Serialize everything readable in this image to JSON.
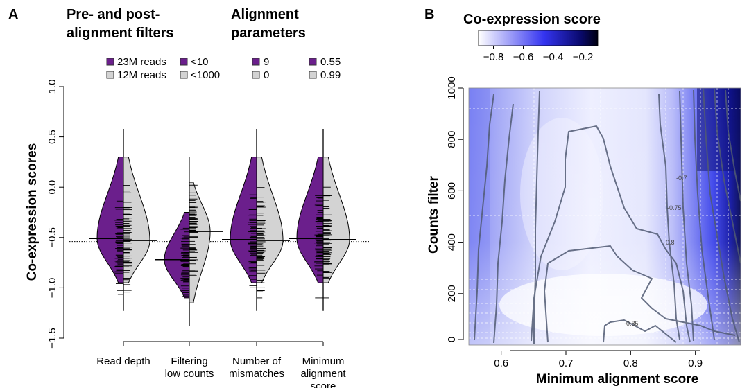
{
  "panel_a": {
    "letter": "A",
    "header_left": [
      "Pre- and post-",
      "alignment filters"
    ],
    "header_right": [
      "Alignment",
      "parameters"
    ],
    "legend": [
      {
        "purple": "23M reads",
        "grey": "12M reads"
      },
      {
        "purple": "<10",
        "grey": "<1000"
      },
      {
        "purple": "9",
        "grey": "0"
      },
      {
        "purple": "0.55",
        "grey": "0.99"
      }
    ]
  },
  "panel_b": {
    "letter": "B",
    "colorbar_title": "Co-expression score",
    "colorbar_ticks": [
      "−0.8",
      "−0.6",
      "−0.4",
      "−0.2"
    ],
    "contour_labels": [
      "-0.7",
      "-0.75",
      "-0.8",
      "-0.85"
    ]
  },
  "colors": {
    "purple": "#6b1f8c",
    "grey": "#d3d3d3",
    "heat_low": "#ffffff",
    "heat_mid": "#3a3af5",
    "heat_high": "#000020"
  },
  "chart_data": [
    {
      "type": "violin",
      "ylabel": "Co-expression scores",
      "ylim": [
        -1.5,
        1.0
      ],
      "yticks": [
        "−1.5",
        "−1.0",
        "−0.5",
        "0.0",
        "0.5",
        "1.0"
      ],
      "reference_line": -0.54,
      "categories": [
        [
          "Read depth"
        ],
        [
          "Filtering",
          "low counts"
        ],
        [
          "Number of",
          "mismatches"
        ],
        [
          "Minimum",
          "alignment",
          "score"
        ]
      ],
      "groups": [
        {
          "purple_median": -0.51,
          "grey_median": -0.53,
          "purple_range": [
            -0.95,
            0.3
          ],
          "grey_range": [
            -0.95,
            0.3
          ]
        },
        {
          "purple_median": -0.72,
          "grey_median": -0.44,
          "purple_range": [
            -1.1,
            -0.25
          ],
          "grey_range": [
            -1.15,
            0.05
          ]
        },
        {
          "purple_median": -0.52,
          "grey_median": -0.53,
          "purple_range": [
            -0.95,
            0.3
          ],
          "grey_range": [
            -0.95,
            0.3
          ]
        },
        {
          "purple_median": -0.51,
          "grey_median": -0.52,
          "purple_range": [
            -0.95,
            0.3
          ],
          "grey_range": [
            -0.95,
            0.3
          ]
        }
      ]
    },
    {
      "type": "heatmap",
      "xlabel": "Minimum alignment score",
      "ylabel": "Counts filter",
      "xlim": [
        0.55,
        0.97
      ],
      "ylim": [
        0,
        1000
      ],
      "xticks": [
        "0.6",
        "0.7",
        "0.8",
        "0.9"
      ],
      "yticks": [
        "0",
        "200",
        "400",
        "600",
        "800",
        "1000"
      ],
      "color_range": [
        -0.9,
        -0.1
      ]
    }
  ]
}
